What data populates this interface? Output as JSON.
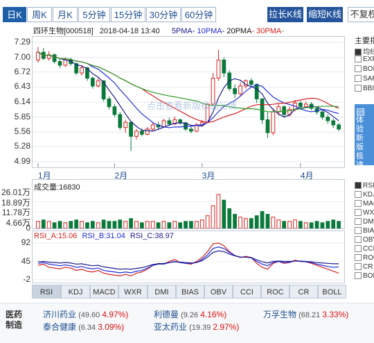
{
  "period_tabs": [
    "日K",
    "周K",
    "月K",
    "5分钟",
    "15分钟",
    "30分钟",
    "60分钟"
  ],
  "active_period": "日K",
  "buttons": {
    "stretch": "拉长K线",
    "shrink": "缩短K线",
    "no_adjust": "不复权"
  },
  "stock_header": {
    "name": "四环生物[000518]",
    "datetime": "2018-04-18 13:40",
    "ma5": "5PMA",
    "ma10": "10PMA",
    "ma20": "20PMA",
    "ma30": "30PMA"
  },
  "watermark": "点击查看新版极速行情",
  "price_axis": [
    "7.29",
    "7.00",
    "6.72",
    "6.43",
    "6.14",
    "5.85",
    "5.56",
    "5.28",
    "4.99"
  ],
  "month_labels": [
    "1月",
    "2月",
    "3月",
    "4月"
  ],
  "volume": {
    "title": "成交量:",
    "value": "16830",
    "axis": [
      "26.01万",
      "18.89万",
      "11.78万",
      "4.66万",
      "0"
    ]
  },
  "rsi": {
    "a": "RSI_A:15.06",
    "b": "RSI_B:31.04",
    "c": "RSI_C:38.97",
    "axis": [
      "92",
      "45",
      "-2"
    ]
  },
  "indicator_tabs": [
    "RSI",
    "KDJ",
    "MACD",
    "WXR",
    "DMI",
    "BIAS",
    "OBV",
    "CCI",
    "ROC",
    "CR",
    "BOLL"
  ],
  "active_indicator": "RSI",
  "side": {
    "title": "主要指",
    "items": [
      "均线",
      "EXP",
      "BOI",
      "SAR",
      "BBI"
    ],
    "checked": [
      true,
      false,
      false,
      false,
      false
    ],
    "promo": "体验新版极速行情",
    "indicators": [
      "RSI",
      "KDJ",
      "MAC",
      "WXR",
      "DMI",
      "BIA",
      "OBV",
      "CCI",
      "ROC",
      "CR",
      "BOL"
    ]
  },
  "sector": {
    "label": "医药制造",
    "rows": [
      [
        {
          "name": "济川药业",
          "price": "(49.60",
          "pct": "4.97%)"
        },
        {
          "name": "利德曼",
          "price": "(9.26",
          "pct": "4.16%)"
        },
        {
          "name": "万孚生物",
          "price": "(68.21",
          "pct": "3.33%)"
        }
      ],
      [
        {
          "name": "泰合健康",
          "price": "(6.34",
          "pct": "3.09%)"
        },
        {
          "name": "亚太药业",
          "price": "(19.39",
          "pct": "2.97%)"
        }
      ]
    ]
  },
  "colors": {
    "up": "#d92020",
    "down": "#0a7a3a",
    "ma5": "#1a1a8c",
    "ma10": "#1f2bd6",
    "ma20": "#d42020",
    "ma30": "#2a9a2a",
    "accent": "#1f5fa8"
  },
  "chart_data": [
    {
      "type": "candlestick",
      "title": "四环生物[000518]",
      "ylim": [
        4.99,
        7.29
      ],
      "yticks": [
        7.29,
        7.0,
        6.72,
        6.43,
        6.14,
        5.85,
        5.56,
        5.28,
        4.99
      ],
      "xticks": [
        "1月",
        "2月",
        "3月",
        "4月"
      ],
      "candles": [
        [
          6.95,
          7.1,
          7.2,
          6.9
        ],
        [
          7.1,
          6.98,
          7.18,
          6.95
        ],
        [
          6.98,
          7.05,
          7.12,
          6.94
        ],
        [
          7.05,
          6.92,
          7.08,
          6.88
        ],
        [
          6.92,
          6.85,
          6.98,
          6.8
        ],
        [
          6.85,
          6.95,
          7.0,
          6.82
        ],
        [
          6.95,
          6.88,
          6.99,
          6.84
        ],
        [
          6.88,
          6.7,
          6.9,
          6.66
        ],
        [
          6.7,
          6.8,
          6.85,
          6.65
        ],
        [
          6.8,
          6.6,
          6.82,
          6.55
        ],
        [
          6.6,
          6.45,
          6.63,
          6.4
        ],
        [
          6.45,
          6.55,
          6.6,
          6.42
        ],
        [
          6.55,
          6.2,
          6.56,
          6.15
        ],
        [
          6.2,
          6.05,
          6.25,
          6.0
        ],
        [
          6.05,
          5.9,
          6.1,
          5.85
        ],
        [
          5.9,
          5.65,
          5.95,
          5.6
        ],
        [
          5.65,
          5.75,
          5.8,
          5.55
        ],
        [
          5.75,
          5.48,
          5.78,
          5.2
        ],
        [
          5.48,
          5.58,
          5.62,
          5.42
        ],
        [
          5.58,
          5.52,
          5.64,
          5.48
        ],
        [
          5.52,
          5.62,
          5.66,
          5.5
        ],
        [
          5.62,
          5.7,
          5.74,
          5.58
        ],
        [
          5.7,
          5.66,
          5.76,
          5.6
        ],
        [
          5.66,
          5.78,
          5.82,
          5.64
        ],
        [
          5.78,
          5.72,
          5.84,
          5.68
        ],
        [
          5.72,
          5.8,
          5.86,
          5.7
        ],
        [
          5.8,
          5.74,
          5.82,
          5.7
        ],
        [
          5.74,
          5.62,
          5.76,
          5.58
        ],
        [
          5.62,
          5.58,
          5.66,
          5.54
        ],
        [
          5.58,
          5.7,
          5.74,
          5.56
        ],
        [
          5.7,
          5.75,
          5.8,
          5.66
        ],
        [
          5.75,
          6.1,
          6.12,
          5.74
        ],
        [
          6.1,
          6.6,
          6.7,
          6.08
        ],
        [
          6.6,
          6.95,
          7.15,
          6.55
        ],
        [
          6.95,
          6.7,
          7.0,
          6.62
        ],
        [
          6.7,
          6.4,
          6.75,
          6.35
        ],
        [
          6.4,
          6.3,
          6.48,
          6.22
        ],
        [
          6.3,
          6.45,
          6.52,
          6.25
        ],
        [
          6.45,
          6.55,
          6.58,
          6.4
        ],
        [
          6.55,
          6.48,
          6.6,
          6.42
        ],
        [
          6.48,
          6.2,
          6.5,
          6.12
        ],
        [
          6.2,
          5.8,
          6.22,
          5.72
        ],
        [
          5.8,
          5.55,
          5.95,
          5.45
        ],
        [
          5.55,
          5.95,
          6.02,
          5.5
        ],
        [
          5.95,
          6.05,
          6.1,
          5.88
        ],
        [
          6.05,
          5.9,
          6.08,
          5.85
        ],
        [
          5.9,
          6.0,
          6.05,
          5.86
        ],
        [
          6.0,
          6.12,
          6.18,
          5.96
        ],
        [
          6.12,
          6.05,
          6.16,
          6.0
        ],
        [
          6.05,
          6.1,
          6.15,
          6.02
        ],
        [
          6.1,
          6.02,
          6.14,
          5.98
        ],
        [
          6.02,
          5.95,
          6.06,
          5.9
        ],
        [
          5.95,
          5.85,
          5.98,
          5.8
        ],
        [
          5.85,
          5.78,
          5.9,
          5.72
        ],
        [
          5.78,
          5.7,
          5.82,
          5.64
        ],
        [
          5.7,
          5.62,
          5.74,
          5.58
        ]
      ]
    },
    {
      "type": "bar",
      "title": "成交量",
      "ylim": [
        0,
        26.01
      ],
      "values": [
        5,
        6,
        5,
        4,
        5,
        4,
        5,
        6,
        5,
        4,
        5,
        4,
        6,
        5,
        5,
        6,
        5,
        7,
        5,
        4,
        5,
        5,
        4,
        5,
        4,
        5,
        4,
        5,
        5,
        5,
        6,
        9,
        16,
        24,
        20,
        14,
        10,
        8,
        7,
        7,
        9,
        12,
        10,
        8,
        6,
        5,
        5,
        6,
        5,
        4,
        4,
        5,
        4,
        5,
        6,
        5
      ]
    },
    {
      "type": "line",
      "title": "RSI",
      "ylim": [
        -2,
        92
      ],
      "series": [
        {
          "name": "RSI_A",
          "values": [
            35,
            38,
            30,
            28,
            26,
            30,
            28,
            22,
            25,
            20,
            18,
            22,
            15,
            12,
            10,
            8,
            12,
            8,
            15,
            18,
            25,
            35,
            40,
            38,
            45,
            50,
            42,
            40,
            38,
            45,
            55,
            70,
            90,
            92,
            85,
            70,
            60,
            55,
            58,
            55,
            40,
            30,
            25,
            40,
            45,
            40,
            42,
            48,
            45,
            44,
            40,
            35,
            30,
            25,
            20,
            15
          ]
        },
        {
          "name": "RSI_B",
          "values": [
            40,
            42,
            38,
            36,
            34,
            36,
            34,
            30,
            32,
            28,
            26,
            28,
            22,
            20,
            18,
            16,
            18,
            16,
            20,
            22,
            28,
            35,
            38,
            38,
            42,
            45,
            42,
            40,
            40,
            42,
            50,
            62,
            78,
            82,
            78,
            68,
            60,
            56,
            56,
            54,
            45,
            38,
            34,
            42,
            45,
            42,
            43,
            46,
            45,
            44,
            42,
            38,
            35,
            32,
            30,
            31
          ]
        },
        {
          "name": "RSI_C",
          "values": [
            44,
            45,
            43,
            42,
            41,
            42,
            41,
            38,
            39,
            36,
            34,
            35,
            31,
            29,
            27,
            25,
            26,
            25,
            27,
            29,
            33,
            37,
            39,
            40,
            42,
            44,
            43,
            42,
            41,
            42,
            47,
            56,
            68,
            72,
            70,
            64,
            59,
            56,
            56,
            55,
            49,
            44,
            41,
            45,
            46,
            45,
            45,
            46,
            46,
            45,
            44,
            42,
            41,
            40,
            39,
            39
          ]
        }
      ]
    }
  ]
}
